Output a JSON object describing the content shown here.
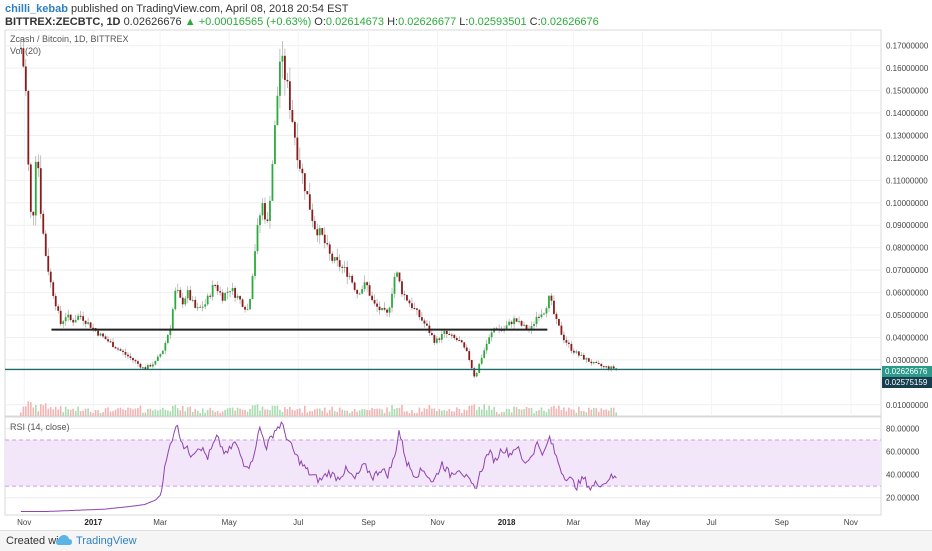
{
  "header": {
    "user": "chilli_kebab",
    "published": " published on TradingView.com, April 08, 2018 20:54 EST",
    "symbol": "BITTREX:ZECBTC, 1D",
    "last": "0.02626676",
    "change": "▲ +0.00016565 (+0.63%)",
    "o_label": "O:",
    "o": "0.02614673",
    "h_label": "H:",
    "h": "0.02626677",
    "l_label": "L:",
    "l": "0.02593501",
    "c_label": "C:",
    "c": "0.02626676"
  },
  "main_pane": {
    "title": "Zcash / Bitcoin, 1D, BITTREX",
    "vol_label": "Vol (20)",
    "last_price_tag": "0.02626676",
    "level_tag": "0.02575159"
  },
  "rsi_pane": {
    "title": "RSI (14, close)"
  },
  "footer": {
    "created_with": "Created with",
    "brand": "TradingView"
  },
  "colors": {
    "up": "#2bab3b",
    "down": "#8b1a1a",
    "rsi_line": "#8e44ad",
    "rsi_band": "#f3e6fb",
    "support_line": "#222222",
    "level_line": "#1f6b6b",
    "last_tag": "#2b9a8a",
    "level_tag": "#173e4e"
  },
  "chart_data": {
    "type": "candlestick",
    "y_ticks": [
      "0.17000000",
      "0.16000000",
      "0.15000000",
      "0.14000000",
      "0.13000000",
      "0.12000000",
      "0.11000000",
      "0.10000000",
      "0.09000000",
      "0.08000000",
      "0.07000000",
      "0.06000000",
      "0.05000000",
      "0.04000000",
      "0.03000000",
      "0.01000000"
    ],
    "ylim": [
      0.005,
      0.177
    ],
    "x_ticks": [
      "Nov",
      "2017",
      "Mar",
      "May",
      "Jul",
      "Sep",
      "Nov",
      "2018",
      "Mar",
      "May",
      "Jul",
      "Sep",
      "Nov"
    ],
    "x_ticks_bold": [
      "2017",
      "2018"
    ],
    "price_series": [
      [
        "2016-10-29",
        0.169
      ],
      [
        "2016-11-02",
        0.155
      ],
      [
        "2016-11-05",
        0.11
      ],
      [
        "2016-11-08",
        0.085
      ],
      [
        "2016-11-12",
        0.13
      ],
      [
        "2016-11-15",
        0.1
      ],
      [
        "2016-11-19",
        0.08
      ],
      [
        "2016-11-24",
        0.065
      ],
      [
        "2016-11-29",
        0.055
      ],
      [
        "2016-12-03",
        0.046
      ],
      [
        "2016-12-08",
        0.05
      ],
      [
        "2016-12-13",
        0.047
      ],
      [
        "2016-12-20",
        0.05
      ],
      [
        "2016-12-28",
        0.046
      ],
      [
        "2017-01-05",
        0.042
      ],
      [
        "2017-01-15",
        0.038
      ],
      [
        "2017-01-25",
        0.034
      ],
      [
        "2017-02-05",
        0.03
      ],
      [
        "2017-02-15",
        0.026
      ],
      [
        "2017-02-25",
        0.029
      ],
      [
        "2017-03-04",
        0.035
      ],
      [
        "2017-03-10",
        0.045
      ],
      [
        "2017-03-15",
        0.062
      ],
      [
        "2017-03-20",
        0.055
      ],
      [
        "2017-03-25",
        0.06
      ],
      [
        "2017-04-02",
        0.052
      ],
      [
        "2017-04-10",
        0.055
      ],
      [
        "2017-04-18",
        0.064
      ],
      [
        "2017-04-25",
        0.058
      ],
      [
        "2017-05-02",
        0.062
      ],
      [
        "2017-05-10",
        0.057
      ],
      [
        "2017-05-18",
        0.052
      ],
      [
        "2017-05-25",
        0.085
      ],
      [
        "2017-05-30",
        0.1
      ],
      [
        "2017-06-04",
        0.09
      ],
      [
        "2017-06-10",
        0.13
      ],
      [
        "2017-06-15",
        0.165
      ],
      [
        "2017-06-20",
        0.155
      ],
      [
        "2017-06-25",
        0.14
      ],
      [
        "2017-07-01",
        0.12
      ],
      [
        "2017-07-08",
        0.105
      ],
      [
        "2017-07-15",
        0.09
      ],
      [
        "2017-07-22",
        0.085
      ],
      [
        "2017-07-30",
        0.075
      ],
      [
        "2017-08-07",
        0.072
      ],
      [
        "2017-08-15",
        0.068
      ],
      [
        "2017-08-22",
        0.06
      ],
      [
        "2017-08-30",
        0.064
      ],
      [
        "2017-09-05",
        0.055
      ],
      [
        "2017-09-12",
        0.052
      ],
      [
        "2017-09-18",
        0.05
      ],
      [
        "2017-09-25",
        0.07
      ],
      [
        "2017-10-01",
        0.06
      ],
      [
        "2017-10-08",
        0.055
      ],
      [
        "2017-10-15",
        0.05
      ],
      [
        "2017-10-22",
        0.045
      ],
      [
        "2017-10-30",
        0.038
      ],
      [
        "2017-11-07",
        0.042
      ],
      [
        "2017-11-14",
        0.04
      ],
      [
        "2017-11-21",
        0.038
      ],
      [
        "2017-11-28",
        0.032
      ],
      [
        "2017-12-04",
        0.022
      ],
      [
        "2017-12-09",
        0.03
      ],
      [
        "2017-12-15",
        0.038
      ],
      [
        "2017-12-22",
        0.045
      ],
      [
        "2017-12-28",
        0.043
      ],
      [
        "2018-01-03",
        0.046
      ],
      [
        "2018-01-08",
        0.048
      ],
      [
        "2018-01-15",
        0.045
      ],
      [
        "2018-01-22",
        0.043
      ],
      [
        "2018-01-28",
        0.05
      ],
      [
        "2018-02-03",
        0.052
      ],
      [
        "2018-02-08",
        0.058
      ],
      [
        "2018-02-13",
        0.048
      ],
      [
        "2018-02-20",
        0.04
      ],
      [
        "2018-02-27",
        0.035
      ],
      [
        "2018-03-06",
        0.032
      ],
      [
        "2018-03-13",
        0.03
      ],
      [
        "2018-03-20",
        0.028
      ],
      [
        "2018-03-27",
        0.027
      ],
      [
        "2018-04-02",
        0.0265
      ],
      [
        "2018-04-08",
        0.02626676
      ]
    ],
    "support_line": {
      "value": 0.0435,
      "from": "2016-11-25",
      "to": "2018-02-06"
    },
    "level_line": {
      "value": 0.02575159
    },
    "rsi": {
      "ylim": [
        5,
        90
      ],
      "y_ticks": [
        "80.00000",
        "60.00000",
        "40.00000",
        "20.00000"
      ],
      "bands": [
        70,
        30
      ],
      "series": [
        [
          "2016-10-29",
          8
        ],
        [
          "2016-11-20",
          8
        ],
        [
          "2016-12-15",
          9
        ],
        [
          "2017-01-10",
          10
        ],
        [
          "2017-01-30",
          12
        ],
        [
          "2017-02-15",
          14
        ],
        [
          "2017-02-25",
          18
        ],
        [
          "2017-03-01",
          22
        ],
        [
          "2017-03-05",
          45
        ],
        [
          "2017-03-10",
          66
        ],
        [
          "2017-03-15",
          84
        ],
        [
          "2017-03-22",
          65
        ],
        [
          "2017-03-28",
          58
        ],
        [
          "2017-04-05",
          65
        ],
        [
          "2017-04-12",
          55
        ],
        [
          "2017-04-20",
          72
        ],
        [
          "2017-04-28",
          57
        ],
        [
          "2017-05-06",
          68
        ],
        [
          "2017-05-14",
          50
        ],
        [
          "2017-05-20",
          48
        ],
        [
          "2017-05-28",
          80
        ],
        [
          "2017-06-03",
          64
        ],
        [
          "2017-06-10",
          78
        ],
        [
          "2017-06-16",
          84
        ],
        [
          "2017-06-22",
          70
        ],
        [
          "2017-06-28",
          58
        ],
        [
          "2017-07-05",
          48
        ],
        [
          "2017-07-12",
          40
        ],
        [
          "2017-07-20",
          35
        ],
        [
          "2017-07-28",
          42
        ],
        [
          "2017-08-05",
          37
        ],
        [
          "2017-08-12",
          44
        ],
        [
          "2017-08-20",
          36
        ],
        [
          "2017-08-28",
          48
        ],
        [
          "2017-09-05",
          38
        ],
        [
          "2017-09-12",
          45
        ],
        [
          "2017-09-18",
          40
        ],
        [
          "2017-09-24",
          55
        ],
        [
          "2017-09-28",
          78
        ],
        [
          "2017-10-05",
          50
        ],
        [
          "2017-10-12",
          40
        ],
        [
          "2017-10-20",
          44
        ],
        [
          "2017-10-28",
          33
        ],
        [
          "2017-11-05",
          50
        ],
        [
          "2017-11-12",
          40
        ],
        [
          "2017-11-20",
          46
        ],
        [
          "2017-11-28",
          35
        ],
        [
          "2017-12-04",
          27
        ],
        [
          "2017-12-10",
          45
        ],
        [
          "2017-12-16",
          60
        ],
        [
          "2017-12-22",
          52
        ],
        [
          "2017-12-28",
          63
        ],
        [
          "2018-01-04",
          58
        ],
        [
          "2018-01-10",
          65
        ],
        [
          "2018-01-16",
          50
        ],
        [
          "2018-01-22",
          55
        ],
        [
          "2018-01-28",
          67
        ],
        [
          "2018-02-03",
          58
        ],
        [
          "2018-02-08",
          72
        ],
        [
          "2018-02-14",
          55
        ],
        [
          "2018-02-20",
          40
        ],
        [
          "2018-02-26",
          36
        ],
        [
          "2018-03-04",
          30
        ],
        [
          "2018-03-10",
          37
        ],
        [
          "2018-03-16",
          28
        ],
        [
          "2018-03-22",
          33
        ],
        [
          "2018-03-28",
          32
        ],
        [
          "2018-04-02",
          38
        ],
        [
          "2018-04-08",
          37
        ]
      ]
    }
  }
}
